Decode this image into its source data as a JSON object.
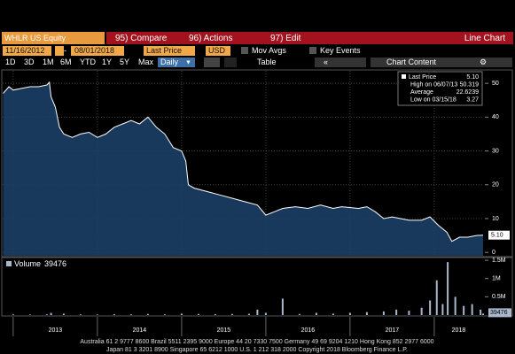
{
  "toolbar": {
    "security": "WHLR US Equity",
    "actions": [
      "95) Compare",
      "96) Actions",
      "97) Edit"
    ],
    "view": "Line Chart"
  },
  "controls": {
    "start_date": "11/16/2012",
    "end_date": "08/01/2018",
    "field": "Last Price",
    "currency": "USD",
    "options": [
      "Mov Avgs",
      "Key Events"
    ],
    "ranges": [
      "1D",
      "3D",
      "1M",
      "6M",
      "YTD",
      "1Y",
      "5Y",
      "Max"
    ],
    "frequency": "Daily",
    "table": "Table",
    "content": "Chart Content"
  },
  "chart_data": [
    {
      "type": "area",
      "x": [
        2012.88,
        2012.95,
        2013.0,
        2013.1,
        2013.2,
        2013.3,
        2013.4,
        2013.43,
        2013.45,
        2013.5,
        2013.55,
        2013.6,
        2013.7,
        2013.8,
        2013.9,
        2014.0,
        2014.1,
        2014.2,
        2014.3,
        2014.4,
        2014.5,
        2014.6,
        2014.7,
        2014.8,
        2014.9,
        2015.0,
        2015.05,
        2015.08,
        2015.15,
        2015.3,
        2015.45,
        2015.6,
        2015.75,
        2015.9,
        2016.0,
        2016.1,
        2016.2,
        2016.35,
        2016.5,
        2016.65,
        2016.8,
        2016.9,
        2017.1,
        2017.2,
        2017.3,
        2017.4,
        2017.5,
        2017.6,
        2017.7,
        2017.85,
        2017.95,
        2018.05,
        2018.15,
        2018.21,
        2018.3,
        2018.4,
        2018.5,
        2018.58
      ],
      "series": [
        {
          "color": "#ffffff",
          "fill": "#1c3f66",
          "values": [
            47,
            49,
            48,
            48.5,
            49,
            49,
            49.5,
            50.319,
            46,
            43,
            37,
            35,
            34,
            35,
            35.5,
            34,
            35,
            37,
            38,
            39,
            38,
            40,
            37,
            35,
            31,
            30,
            27,
            20,
            19,
            18,
            17,
            16,
            15,
            14,
            11,
            12,
            13,
            13.5,
            13,
            14,
            13,
            13.5,
            13,
            13.5,
            12,
            10,
            10.5,
            10,
            9.5,
            9.5,
            10.5,
            8,
            6,
            3.27,
            4.5,
            4.5,
            5,
            5.1
          ]
        }
      ],
      "stats": [
        {
          "label": "Last Price",
          "value": 5.1,
          "value_label": "5.10"
        },
        {
          "label": "High on 06/07/13",
          "value": 50.319
        },
        {
          "label": "Average",
          "value": 22.6239
        },
        {
          "label": "Low on 03/15/18",
          "value": 3.27
        }
      ],
      "xlim": [
        2012.875,
        2018.58
      ],
      "xticks": [
        2013,
        2014,
        2015,
        2016,
        2017,
        2018
      ],
      "ylim": [
        -1,
        53.7
      ],
      "yticks": [
        0,
        10,
        20,
        30,
        40,
        50
      ],
      "grid": true
    },
    {
      "type": "bar",
      "x": [
        2013.0,
        2013.2,
        2013.4,
        2013.45,
        2013.6,
        2013.8,
        2014.0,
        2014.2,
        2014.4,
        2014.6,
        2014.8,
        2015.0,
        2015.2,
        2015.4,
        2015.6,
        2015.8,
        2015.9,
        2016.0,
        2016.2,
        2016.4,
        2016.6,
        2016.8,
        2017.0,
        2017.2,
        2017.4,
        2017.55,
        2017.7,
        2017.85,
        2017.95,
        2018.03,
        2018.1,
        2018.16,
        2018.25,
        2018.35,
        2018.45,
        2018.55,
        2018.58
      ],
      "series": [
        {
          "name": "Volume",
          "color": "#a9b8cc",
          "values": [
            20000,
            15000,
            20000,
            60000,
            40000,
            20000,
            15000,
            25000,
            20000,
            30000,
            20000,
            40000,
            30000,
            25000,
            30000,
            35000,
            150000,
            60000,
            450000,
            30000,
            60000,
            40000,
            60000,
            80000,
            100000,
            150000,
            120000,
            200000,
            400000,
            950000,
            300000,
            1450000,
            500000,
            250000,
            300000,
            150000,
            39476
          ]
        }
      ],
      "xlim": [
        2012.875,
        2018.58
      ],
      "ylim": [
        0,
        1550000
      ],
      "yticks": [
        {
          "value": 500000,
          "label": "0.5M"
        },
        {
          "value": 1000000,
          "label": "1M"
        },
        {
          "value": 1500000,
          "label": "1.5M"
        }
      ]
    }
  ],
  "footer": {
    "lines": [
      "Australia 61 2 9777 8600 Brazil 5511 2395 9000 Europe 44 20 7330 7500 Germany 49 69 9204 1210 Hong Kong 852 2977 6000",
      "Japan 81 3 3201 8900     Singapore 65 6212 1000     U.S. 1 212 318 2000     Copyright 2018 Bloomberg Finance L.P."
    ]
  }
}
